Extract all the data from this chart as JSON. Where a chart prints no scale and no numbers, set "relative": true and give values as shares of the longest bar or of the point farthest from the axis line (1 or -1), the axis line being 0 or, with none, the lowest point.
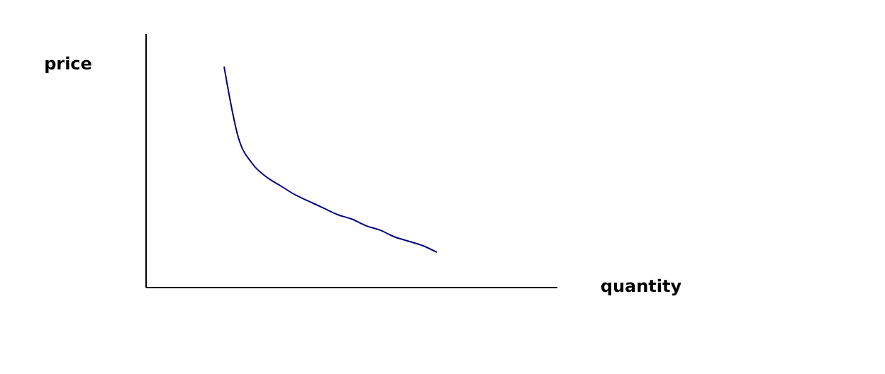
{
  "chart_data": {
    "type": "line",
    "relative": true,
    "ylabel": "price",
    "xlabel": "quantity",
    "tick_labels": false,
    "categories": [
      null,
      null,
      null,
      null,
      null,
      null,
      null,
      null,
      null,
      null,
      null,
      null,
      null,
      null,
      null,
      null,
      null,
      null,
      null,
      null,
      null,
      null,
      null,
      null,
      null,
      null,
      null,
      null,
      null
    ],
    "series": [
      {
        "color": "#000080",
        "values": [
          null,
          null,
          null,
          null,
          null,
          1,
          0.68,
          0.56,
          0.5,
          0.46,
          0.42,
          0.39,
          0.36,
          0.33,
          0.31,
          0.28,
          0.26,
          0.23,
          0.21,
          0.19,
          0.16,
          null,
          null,
          null,
          null,
          null,
          null,
          null,
          null
        ]
      }
    ]
  }
}
